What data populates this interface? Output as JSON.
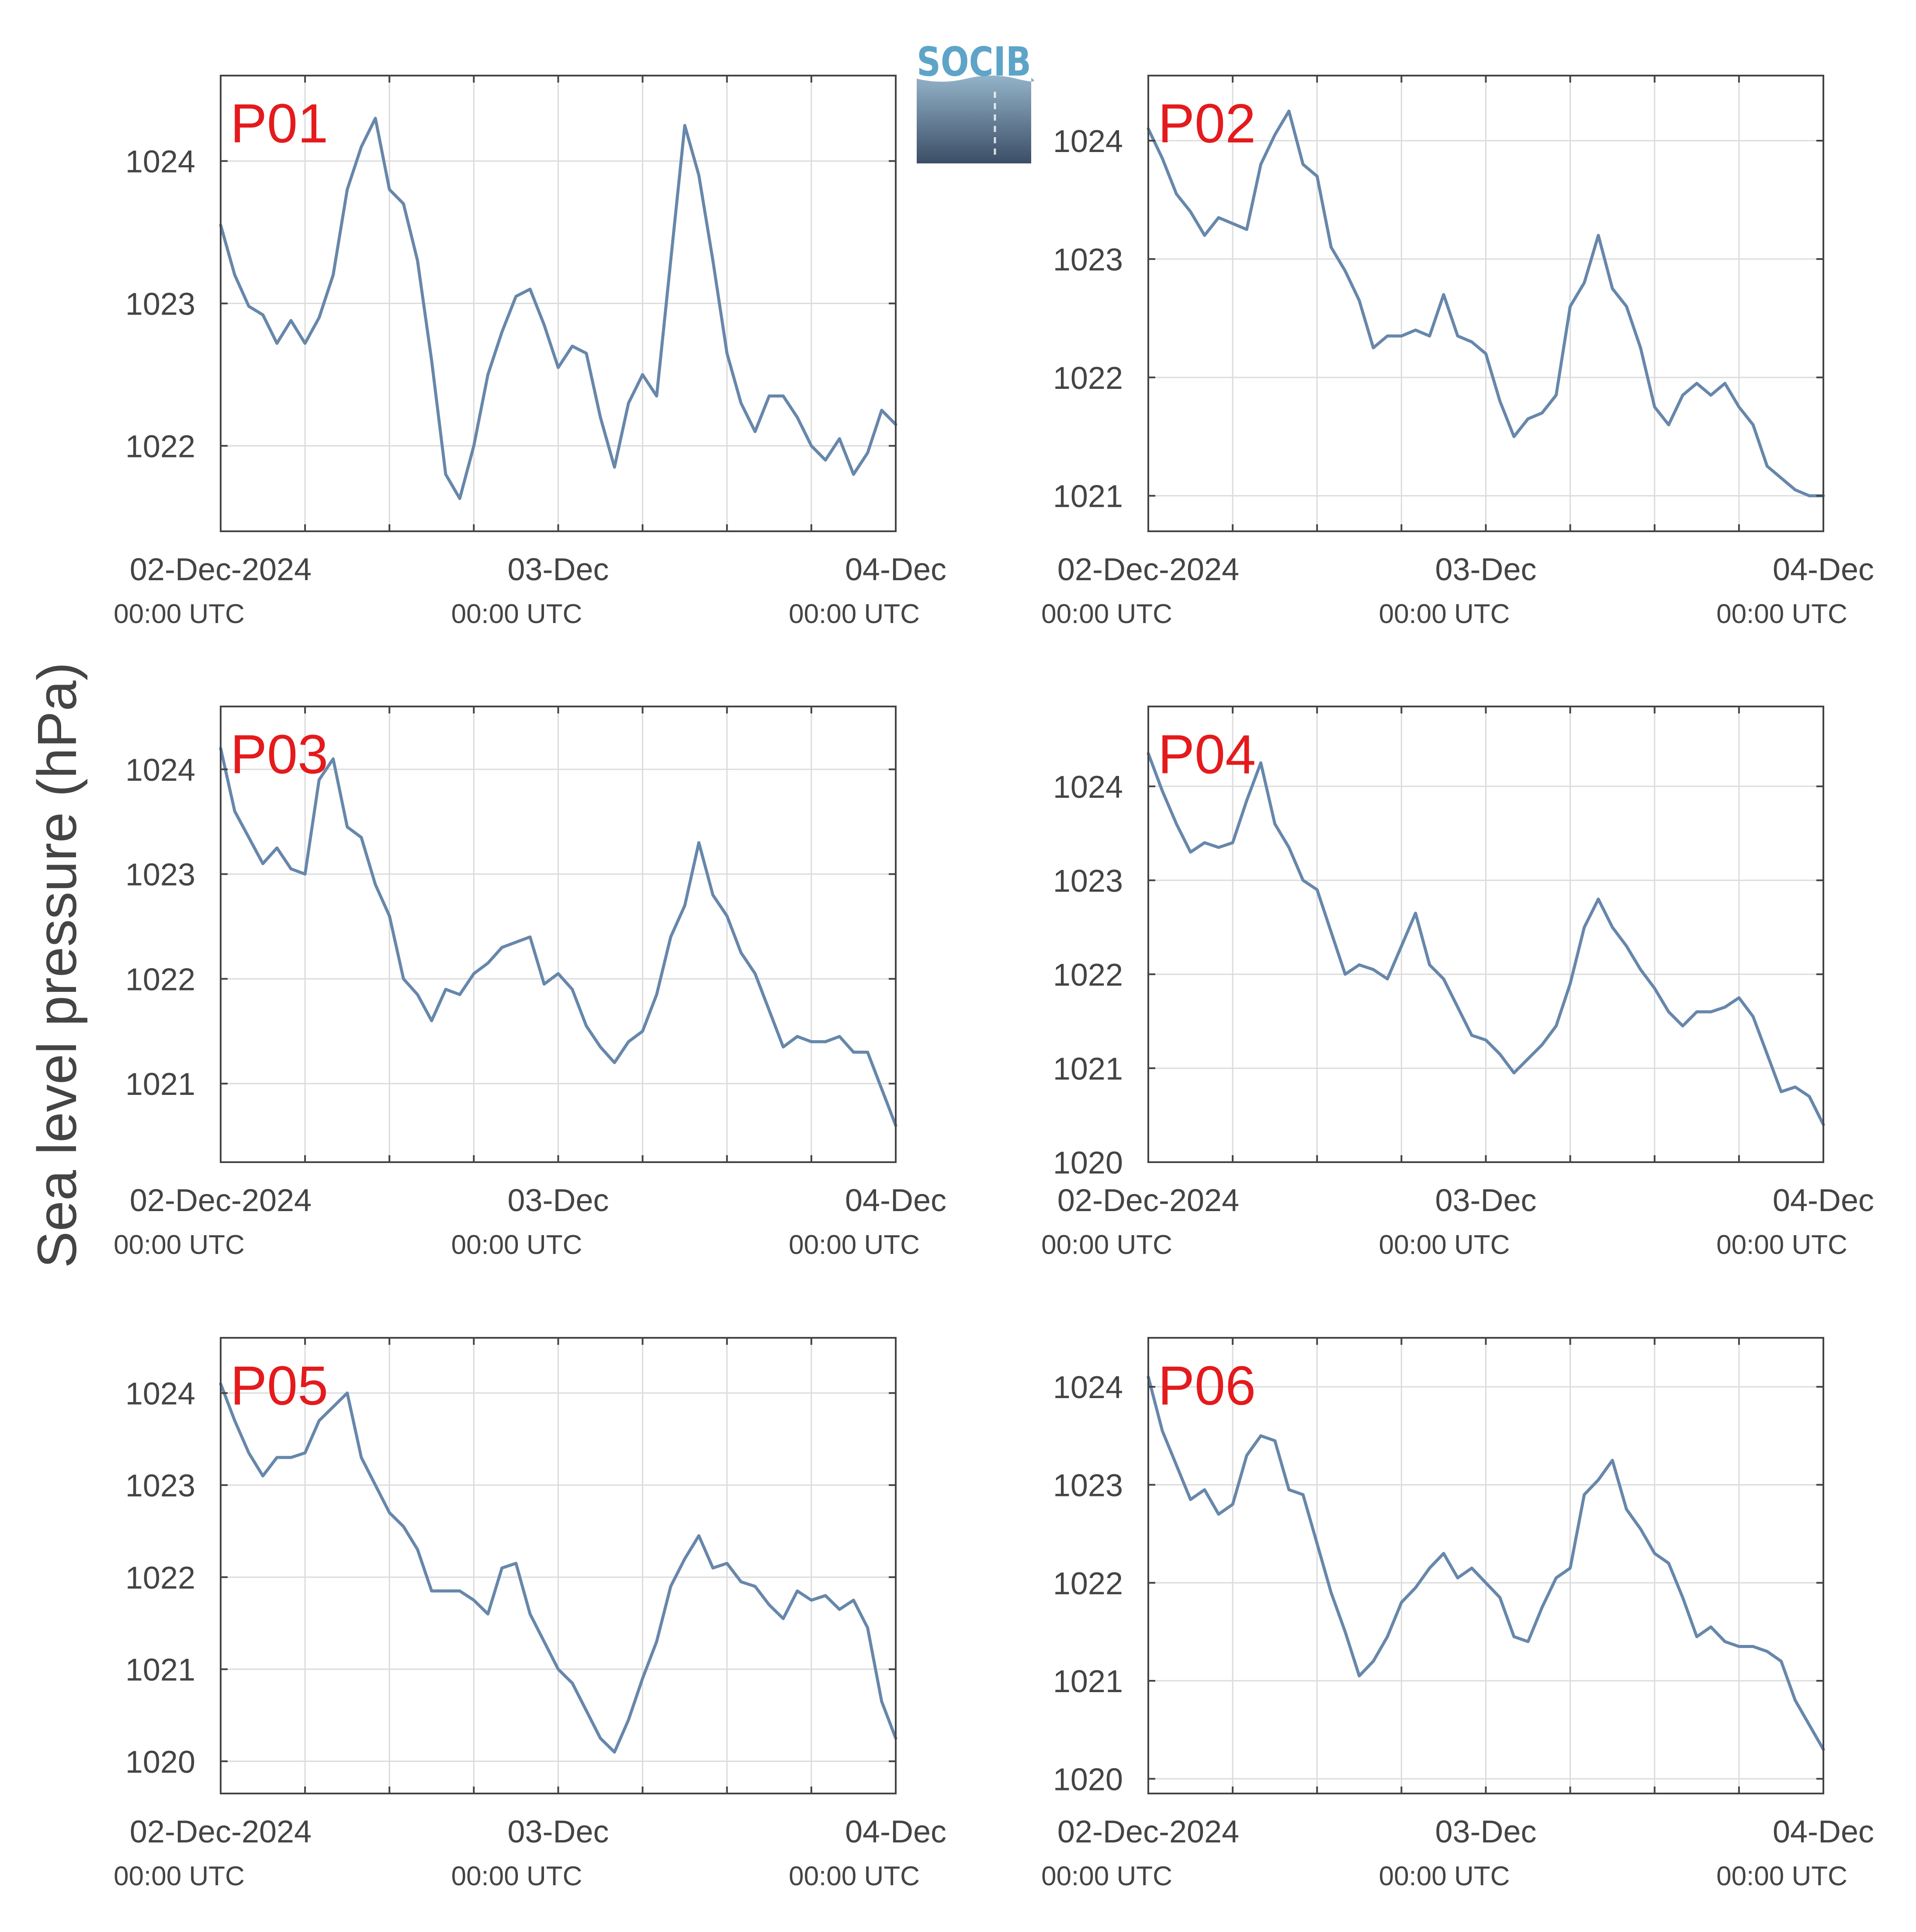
{
  "ylabel": "Sea level pressure (hPa)",
  "logo": {
    "text": "SOCIB",
    "colors": {
      "text": "#5ea4c8",
      "top": "#93b3c9",
      "bottom": "#3b4e66"
    }
  },
  "colors": {
    "line": "#6787ab",
    "label": "#e41a1c",
    "axis": "#444444",
    "grid": "#dcdcdc"
  },
  "x_ticks": [
    {
      "label": "02-Dec-2024",
      "sub": "00:00 UTC"
    },
    {
      "label": "03-Dec",
      "sub": "00:00 UTC"
    },
    {
      "label": "04-Dec",
      "sub": "00:00 UTC"
    }
  ],
  "chart_data": [
    {
      "type": "line",
      "label": "P01",
      "xlim": [
        "2024-12-02T00:00Z",
        "2024-12-04T00:00Z"
      ],
      "ylim": [
        1021.4,
        1024.6
      ],
      "yticks": [
        1022,
        1023,
        1024
      ],
      "x": [
        "2024-12-02T00:00Z",
        "2024-12-02T01:00Z",
        "2024-12-02T02:00Z",
        "2024-12-02T03:00Z",
        "2024-12-02T04:00Z",
        "2024-12-02T05:00Z",
        "2024-12-02T06:00Z",
        "2024-12-02T07:00Z",
        "2024-12-02T08:00Z",
        "2024-12-02T09:00Z",
        "2024-12-02T10:00Z",
        "2024-12-02T11:00Z",
        "2024-12-02T12:00Z",
        "2024-12-02T13:00Z",
        "2024-12-02T14:00Z",
        "2024-12-02T15:00Z",
        "2024-12-02T16:00Z",
        "2024-12-02T17:00Z",
        "2024-12-02T18:00Z",
        "2024-12-02T19:00Z",
        "2024-12-02T20:00Z",
        "2024-12-02T21:00Z",
        "2024-12-02T22:00Z",
        "2024-12-02T23:00Z",
        "2024-12-03T00:00Z",
        "2024-12-03T01:00Z",
        "2024-12-03T02:00Z",
        "2024-12-03T03:00Z",
        "2024-12-03T04:00Z",
        "2024-12-03T05:00Z",
        "2024-12-03T06:00Z",
        "2024-12-03T07:00Z",
        "2024-12-03T08:00Z",
        "2024-12-03T09:00Z",
        "2024-12-03T10:00Z",
        "2024-12-03T11:00Z",
        "2024-12-03T12:00Z",
        "2024-12-03T13:00Z",
        "2024-12-03T14:00Z",
        "2024-12-03T15:00Z",
        "2024-12-03T16:00Z",
        "2024-12-03T17:00Z",
        "2024-12-03T18:00Z",
        "2024-12-03T19:00Z",
        "2024-12-03T20:00Z",
        "2024-12-03T21:00Z",
        "2024-12-03T22:00Z",
        "2024-12-03T23:00Z",
        "2024-12-04T00:00Z"
      ],
      "y": [
        1023.55,
        1023.2,
        1022.98,
        1022.92,
        1022.72,
        1022.88,
        1022.72,
        1022.9,
        1023.2,
        1023.8,
        1024.1,
        1024.3,
        1023.8,
        1023.7,
        1023.3,
        1022.6,
        1021.8,
        1021.63,
        1022.0,
        1022.5,
        1022.8,
        1023.05,
        1023.1,
        1022.85,
        1022.55,
        1022.7,
        1022.65,
        1022.2,
        1021.85,
        1022.3,
        1022.5,
        1022.35,
        1023.3,
        1024.25,
        1023.9,
        1023.3,
        1022.65,
        1022.3,
        1022.1,
        1022.35,
        1022.35,
        1022.2,
        1022.0,
        1021.9,
        1022.05,
        1021.8,
        1021.95,
        1022.25,
        1022.15
      ]
    },
    {
      "type": "line",
      "label": "P02",
      "xlim": [
        "2024-12-02T00:00Z",
        "2024-12-04T00:00Z"
      ],
      "ylim": [
        1020.7,
        1024.55
      ],
      "yticks": [
        1021,
        1022,
        1023,
        1024
      ],
      "x": [
        "2024-12-02T00:00Z",
        "2024-12-02T01:00Z",
        "2024-12-02T02:00Z",
        "2024-12-02T03:00Z",
        "2024-12-02T04:00Z",
        "2024-12-02T05:00Z",
        "2024-12-02T06:00Z",
        "2024-12-02T07:00Z",
        "2024-12-02T08:00Z",
        "2024-12-02T09:00Z",
        "2024-12-02T10:00Z",
        "2024-12-02T11:00Z",
        "2024-12-02T12:00Z",
        "2024-12-02T13:00Z",
        "2024-12-02T14:00Z",
        "2024-12-02T15:00Z",
        "2024-12-02T16:00Z",
        "2024-12-02T17:00Z",
        "2024-12-02T18:00Z",
        "2024-12-02T19:00Z",
        "2024-12-02T20:00Z",
        "2024-12-02T21:00Z",
        "2024-12-02T22:00Z",
        "2024-12-02T23:00Z",
        "2024-12-03T00:00Z",
        "2024-12-03T01:00Z",
        "2024-12-03T02:00Z",
        "2024-12-03T03:00Z",
        "2024-12-03T04:00Z",
        "2024-12-03T05:00Z",
        "2024-12-03T06:00Z",
        "2024-12-03T07:00Z",
        "2024-12-03T08:00Z",
        "2024-12-03T09:00Z",
        "2024-12-03T10:00Z",
        "2024-12-03T11:00Z",
        "2024-12-03T12:00Z",
        "2024-12-03T13:00Z",
        "2024-12-03T14:00Z",
        "2024-12-03T15:00Z",
        "2024-12-03T16:00Z",
        "2024-12-03T17:00Z",
        "2024-12-03T18:00Z",
        "2024-12-03T19:00Z",
        "2024-12-03T20:00Z",
        "2024-12-03T21:00Z",
        "2024-12-03T22:00Z",
        "2024-12-03T23:00Z",
        "2024-12-04T00:00Z"
      ],
      "y": [
        1024.1,
        1023.85,
        1023.55,
        1023.4,
        1023.2,
        1023.35,
        1023.3,
        1023.25,
        1023.8,
        1024.05,
        1024.25,
        1023.8,
        1023.7,
        1023.1,
        1022.9,
        1022.65,
        1022.25,
        1022.35,
        1022.35,
        1022.4,
        1022.35,
        1022.7,
        1022.35,
        1022.3,
        1022.2,
        1021.8,
        1021.5,
        1021.65,
        1021.7,
        1021.85,
        1022.6,
        1022.8,
        1023.2,
        1022.75,
        1022.6,
        1022.25,
        1021.75,
        1021.6,
        1021.85,
        1021.95,
        1021.85,
        1021.95,
        1021.75,
        1021.6,
        1021.25,
        1021.15,
        1021.05,
        1021.0,
        1021.0
      ]
    },
    {
      "type": "line",
      "label": "P03",
      "xlim": [
        "2024-12-02T00:00Z",
        "2024-12-04T00:00Z"
      ],
      "ylim": [
        1020.25,
        1024.6
      ],
      "yticks": [
        1021,
        1022,
        1023,
        1024
      ],
      "x": [
        "2024-12-02T00:00Z",
        "2024-12-02T01:00Z",
        "2024-12-02T02:00Z",
        "2024-12-02T03:00Z",
        "2024-12-02T04:00Z",
        "2024-12-02T05:00Z",
        "2024-12-02T06:00Z",
        "2024-12-02T07:00Z",
        "2024-12-02T08:00Z",
        "2024-12-02T09:00Z",
        "2024-12-02T10:00Z",
        "2024-12-02T11:00Z",
        "2024-12-02T12:00Z",
        "2024-12-02T13:00Z",
        "2024-12-02T14:00Z",
        "2024-12-02T15:00Z",
        "2024-12-02T16:00Z",
        "2024-12-02T17:00Z",
        "2024-12-02T18:00Z",
        "2024-12-02T19:00Z",
        "2024-12-02T20:00Z",
        "2024-12-02T21:00Z",
        "2024-12-02T22:00Z",
        "2024-12-02T23:00Z",
        "2024-12-03T00:00Z",
        "2024-12-03T01:00Z",
        "2024-12-03T02:00Z",
        "2024-12-03T03:00Z",
        "2024-12-03T04:00Z",
        "2024-12-03T05:00Z",
        "2024-12-03T06:00Z",
        "2024-12-03T07:00Z",
        "2024-12-03T08:00Z",
        "2024-12-03T09:00Z",
        "2024-12-03T10:00Z",
        "2024-12-03T11:00Z",
        "2024-12-03T12:00Z",
        "2024-12-03T13:00Z",
        "2024-12-03T14:00Z",
        "2024-12-03T15:00Z",
        "2024-12-03T16:00Z",
        "2024-12-03T17:00Z",
        "2024-12-03T18:00Z",
        "2024-12-03T19:00Z",
        "2024-12-03T20:00Z",
        "2024-12-03T21:00Z",
        "2024-12-03T22:00Z",
        "2024-12-03T23:00Z",
        "2024-12-04T00:00Z"
      ],
      "y": [
        1024.2,
        1023.6,
        1023.35,
        1023.1,
        1023.25,
        1023.05,
        1023.0,
        1023.9,
        1024.1,
        1023.45,
        1023.35,
        1022.9,
        1022.6,
        1022.0,
        1021.85,
        1021.6,
        1021.9,
        1021.85,
        1022.05,
        1022.15,
        1022.3,
        1022.35,
        1022.4,
        1021.95,
        1022.05,
        1021.9,
        1021.55,
        1021.35,
        1021.2,
        1021.4,
        1021.5,
        1021.85,
        1022.4,
        1022.7,
        1023.3,
        1022.8,
        1022.6,
        1022.25,
        1022.05,
        1021.7,
        1021.35,
        1021.45,
        1021.4,
        1021.4,
        1021.45,
        1021.3,
        1021.3,
        1020.95,
        1020.6
      ]
    },
    {
      "type": "line",
      "label": "P04",
      "xlim": [
        "2024-12-02T00:00Z",
        "2024-12-04T00:00Z"
      ],
      "ylim": [
        1020.0,
        1024.85
      ],
      "yticks": [
        1020,
        1021,
        1022,
        1023,
        1024
      ],
      "x": [
        "2024-12-02T00:00Z",
        "2024-12-02T01:00Z",
        "2024-12-02T02:00Z",
        "2024-12-02T03:00Z",
        "2024-12-02T04:00Z",
        "2024-12-02T05:00Z",
        "2024-12-02T06:00Z",
        "2024-12-02T07:00Z",
        "2024-12-02T08:00Z",
        "2024-12-02T09:00Z",
        "2024-12-02T10:00Z",
        "2024-12-02T11:00Z",
        "2024-12-02T12:00Z",
        "2024-12-02T13:00Z",
        "2024-12-02T14:00Z",
        "2024-12-02T15:00Z",
        "2024-12-02T16:00Z",
        "2024-12-02T17:00Z",
        "2024-12-02T18:00Z",
        "2024-12-02T19:00Z",
        "2024-12-02T20:00Z",
        "2024-12-02T21:00Z",
        "2024-12-02T22:00Z",
        "2024-12-02T23:00Z",
        "2024-12-03T00:00Z",
        "2024-12-03T01:00Z",
        "2024-12-03T02:00Z",
        "2024-12-03T03:00Z",
        "2024-12-03T04:00Z",
        "2024-12-03T05:00Z",
        "2024-12-03T06:00Z",
        "2024-12-03T07:00Z",
        "2024-12-03T08:00Z",
        "2024-12-03T09:00Z",
        "2024-12-03T10:00Z",
        "2024-12-03T11:00Z",
        "2024-12-03T12:00Z",
        "2024-12-03T13:00Z",
        "2024-12-03T14:00Z",
        "2024-12-03T15:00Z",
        "2024-12-03T16:00Z",
        "2024-12-03T17:00Z",
        "2024-12-03T18:00Z",
        "2024-12-03T19:00Z",
        "2024-12-03T20:00Z",
        "2024-12-03T21:00Z",
        "2024-12-03T22:00Z",
        "2024-12-03T23:00Z",
        "2024-12-04T00:00Z"
      ],
      "y": [
        1024.35,
        1023.95,
        1023.6,
        1023.3,
        1023.4,
        1023.35,
        1023.4,
        1023.85,
        1024.25,
        1023.6,
        1023.35,
        1023.0,
        1022.9,
        1022.45,
        1022.0,
        1022.1,
        1022.05,
        1021.95,
        1022.3,
        1022.65,
        1022.1,
        1021.95,
        1021.65,
        1021.35,
        1021.3,
        1021.15,
        1020.95,
        1021.1,
        1021.25,
        1021.45,
        1021.9,
        1022.5,
        1022.8,
        1022.5,
        1022.3,
        1022.05,
        1021.85,
        1021.6,
        1021.45,
        1021.6,
        1021.6,
        1021.65,
        1021.75,
        1021.55,
        1021.15,
        1020.75,
        1020.8,
        1020.7,
        1020.4
      ]
    },
    {
      "type": "line",
      "label": "P05",
      "xlim": [
        "2024-12-02T00:00Z",
        "2024-12-04T00:00Z"
      ],
      "ylim": [
        1019.65,
        1024.6
      ],
      "yticks": [
        1020,
        1021,
        1022,
        1023,
        1024
      ],
      "x": [
        "2024-12-02T00:00Z",
        "2024-12-02T01:00Z",
        "2024-12-02T02:00Z",
        "2024-12-02T03:00Z",
        "2024-12-02T04:00Z",
        "2024-12-02T05:00Z",
        "2024-12-02T06:00Z",
        "2024-12-02T07:00Z",
        "2024-12-02T08:00Z",
        "2024-12-02T09:00Z",
        "2024-12-02T10:00Z",
        "2024-12-02T11:00Z",
        "2024-12-02T12:00Z",
        "2024-12-02T13:00Z",
        "2024-12-02T14:00Z",
        "2024-12-02T15:00Z",
        "2024-12-02T16:00Z",
        "2024-12-02T17:00Z",
        "2024-12-02T18:00Z",
        "2024-12-02T19:00Z",
        "2024-12-02T20:00Z",
        "2024-12-02T21:00Z",
        "2024-12-02T22:00Z",
        "2024-12-02T23:00Z",
        "2024-12-03T00:00Z",
        "2024-12-03T01:00Z",
        "2024-12-03T02:00Z",
        "2024-12-03T03:00Z",
        "2024-12-03T04:00Z",
        "2024-12-03T05:00Z",
        "2024-12-03T06:00Z",
        "2024-12-03T07:00Z",
        "2024-12-03T08:00Z",
        "2024-12-03T09:00Z",
        "2024-12-03T10:00Z",
        "2024-12-03T11:00Z",
        "2024-12-03T12:00Z",
        "2024-12-03T13:00Z",
        "2024-12-03T14:00Z",
        "2024-12-03T15:00Z",
        "2024-12-03T16:00Z",
        "2024-12-03T17:00Z",
        "2024-12-03T18:00Z",
        "2024-12-03T19:00Z",
        "2024-12-03T20:00Z",
        "2024-12-03T21:00Z",
        "2024-12-03T22:00Z",
        "2024-12-03T23:00Z",
        "2024-12-04T00:00Z"
      ],
      "y": [
        1024.1,
        1023.7,
        1023.35,
        1023.1,
        1023.3,
        1023.3,
        1023.35,
        1023.7,
        1023.85,
        1024.0,
        1023.3,
        1023.0,
        1022.7,
        1022.55,
        1022.3,
        1021.85,
        1021.85,
        1021.85,
        1021.75,
        1021.6,
        1022.1,
        1022.15,
        1021.6,
        1021.3,
        1021.0,
        1020.85,
        1020.55,
        1020.25,
        1020.1,
        1020.45,
        1020.9,
        1021.3,
        1021.9,
        1022.2,
        1022.45,
        1022.1,
        1022.15,
        1021.95,
        1021.9,
        1021.7,
        1021.55,
        1021.85,
        1021.75,
        1021.8,
        1021.65,
        1021.75,
        1021.45,
        1020.65,
        1020.25
      ]
    },
    {
      "type": "line",
      "label": "P06",
      "xlim": [
        "2024-12-02T00:00Z",
        "2024-12-04T00:00Z"
      ],
      "ylim": [
        1019.85,
        1024.5
      ],
      "yticks": [
        1020,
        1021,
        1022,
        1023,
        1024
      ],
      "x": [
        "2024-12-02T00:00Z",
        "2024-12-02T01:00Z",
        "2024-12-02T02:00Z",
        "2024-12-02T03:00Z",
        "2024-12-02T04:00Z",
        "2024-12-02T05:00Z",
        "2024-12-02T06:00Z",
        "2024-12-02T07:00Z",
        "2024-12-02T08:00Z",
        "2024-12-02T09:00Z",
        "2024-12-02T10:00Z",
        "2024-12-02T11:00Z",
        "2024-12-02T12:00Z",
        "2024-12-02T13:00Z",
        "2024-12-02T14:00Z",
        "2024-12-02T15:00Z",
        "2024-12-02T16:00Z",
        "2024-12-02T17:00Z",
        "2024-12-02T18:00Z",
        "2024-12-02T19:00Z",
        "2024-12-02T20:00Z",
        "2024-12-02T21:00Z",
        "2024-12-02T22:00Z",
        "2024-12-02T23:00Z",
        "2024-12-03T00:00Z",
        "2024-12-03T01:00Z",
        "2024-12-03T02:00Z",
        "2024-12-03T03:00Z",
        "2024-12-03T04:00Z",
        "2024-12-03T05:00Z",
        "2024-12-03T06:00Z",
        "2024-12-03T07:00Z",
        "2024-12-03T08:00Z",
        "2024-12-03T09:00Z",
        "2024-12-03T10:00Z",
        "2024-12-03T11:00Z",
        "2024-12-03T12:00Z",
        "2024-12-03T13:00Z",
        "2024-12-03T14:00Z",
        "2024-12-03T15:00Z",
        "2024-12-03T16:00Z",
        "2024-12-03T17:00Z",
        "2024-12-03T18:00Z",
        "2024-12-03T19:00Z",
        "2024-12-03T20:00Z",
        "2024-12-03T21:00Z",
        "2024-12-03T22:00Z",
        "2024-12-03T23:00Z",
        "2024-12-04T00:00Z"
      ],
      "y": [
        1024.1,
        1023.55,
        1023.2,
        1022.85,
        1022.95,
        1022.7,
        1022.8,
        1023.3,
        1023.5,
        1023.45,
        1022.95,
        1022.9,
        1022.4,
        1021.9,
        1021.5,
        1021.05,
        1021.2,
        1021.45,
        1021.8,
        1021.95,
        1022.15,
        1022.3,
        1022.05,
        1022.15,
        1022.0,
        1021.85,
        1021.45,
        1021.4,
        1021.75,
        1022.05,
        1022.15,
        1022.9,
        1023.05,
        1023.25,
        1022.75,
        1022.55,
        1022.3,
        1022.2,
        1021.85,
        1021.45,
        1021.55,
        1021.4,
        1021.35,
        1021.35,
        1021.3,
        1021.2,
        1020.8,
        1020.55,
        1020.3
      ]
    }
  ]
}
